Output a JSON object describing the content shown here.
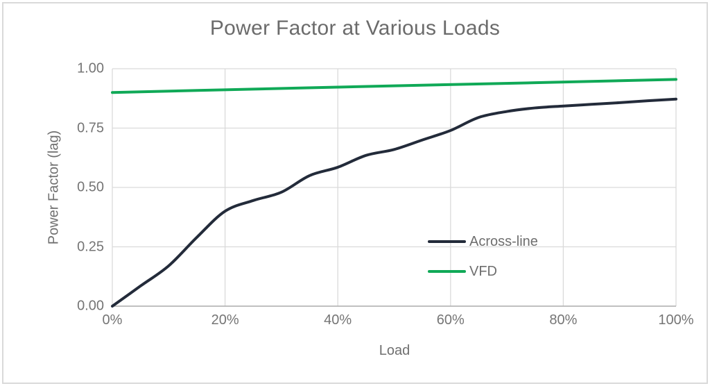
{
  "chart_data": {
    "type": "line",
    "title": "Power Factor at Various Loads",
    "xlabel": "Load",
    "ylabel": "Power Factor (lag)",
    "xlim": [
      0,
      100
    ],
    "ylim": [
      0,
      1
    ],
    "grid": true,
    "legend_position": "inside-right-center",
    "x_ticks": [
      0,
      20,
      40,
      60,
      80,
      100
    ],
    "x_tick_labels": [
      "0%",
      "20%",
      "40%",
      "60%",
      "80%",
      "100%"
    ],
    "y_ticks": [
      0,
      0.25,
      0.5,
      0.75,
      1.0
    ],
    "y_tick_labels": [
      "0.00",
      "0.25",
      "0.50",
      "0.75",
      "1.00"
    ],
    "colors": {
      "grid": "#dadada",
      "axis": "#aeaeae",
      "text": "#6f6f6f",
      "frame": "#d9d9d9"
    },
    "series": [
      {
        "name": "Across-line",
        "color": "#232b3a",
        "x": [
          0,
          5,
          10,
          15,
          20,
          25,
          30,
          35,
          40,
          45,
          50,
          55,
          60,
          65,
          70,
          75,
          80,
          85,
          90,
          95,
          100
        ],
        "y": [
          0.0,
          0.085,
          0.17,
          0.29,
          0.4,
          0.445,
          0.48,
          0.55,
          0.585,
          0.635,
          0.66,
          0.7,
          0.74,
          0.795,
          0.82,
          0.835,
          0.843,
          0.85,
          0.857,
          0.865,
          0.872
        ]
      },
      {
        "name": "VFD",
        "color": "#10a957",
        "x": [
          0,
          25,
          50,
          75,
          100
        ],
        "y": [
          0.9,
          0.914,
          0.928,
          0.941,
          0.955
        ]
      }
    ]
  }
}
